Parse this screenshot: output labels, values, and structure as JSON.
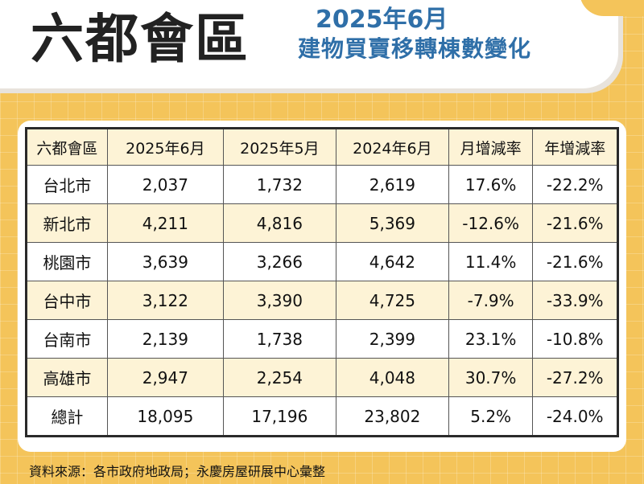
{
  "header": {
    "title": "六都會區",
    "subtitle_line1": "2025年6月",
    "subtitle_line2": "建物買賣移轉棟數變化"
  },
  "table": {
    "columns": [
      "六都會區",
      "2025年6月",
      "2025年5月",
      "2024年6月",
      "月增減率",
      "年增減率"
    ],
    "rows": [
      [
        "台北市",
        "2,037",
        "1,732",
        "2,619",
        "17.6%",
        "-22.2%"
      ],
      [
        "新北市",
        "4,211",
        "4,816",
        "5,369",
        "-12.6%",
        "-21.6%"
      ],
      [
        "桃園市",
        "3,639",
        "3,266",
        "4,642",
        "11.4%",
        "-21.6%"
      ],
      [
        "台中市",
        "3,122",
        "3,390",
        "4,725",
        "-7.9%",
        "-33.9%"
      ],
      [
        "台南市",
        "2,139",
        "1,738",
        "2,399",
        "23.1%",
        "-10.8%"
      ],
      [
        "高雄市",
        "2,947",
        "2,254",
        "4,048",
        "30.7%",
        "-27.2%"
      ],
      [
        "總計",
        "18,095",
        "17,196",
        "23,802",
        "5.2%",
        "-24.0%"
      ]
    ]
  },
  "footer": {
    "source": "資料來源：各市政府地政局；永慶房屋研展中心彙整"
  },
  "colors": {
    "background": "#f4c45a",
    "title_text": "#222222",
    "subtitle_text": "#2f6fa8",
    "shaded_row": "#fdf3d6",
    "card": "#ffffff"
  }
}
